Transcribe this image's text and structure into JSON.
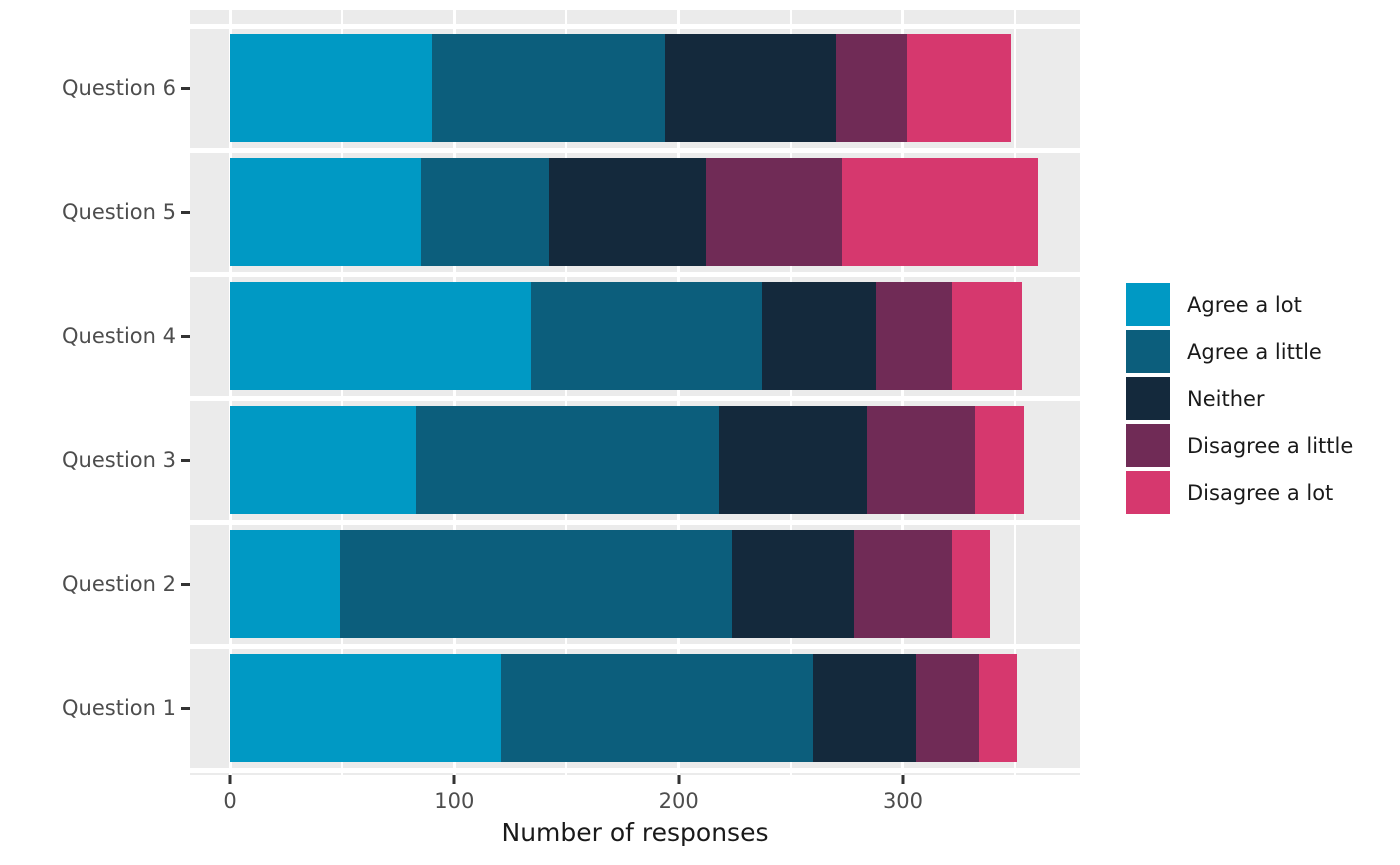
{
  "figure": {
    "background": "#ffffff",
    "panel_bg": "#ebebeb",
    "grid_color": "#ffffff",
    "axis_text_color": "#4d4d4d",
    "axis_title_color": "#1a1a1a",
    "tick_mark_color": "#333333"
  },
  "chart_data": {
    "type": "bar",
    "orientation": "horizontal",
    "stacked": true,
    "title": "",
    "xlabel": "Number of responses",
    "ylabel": "",
    "categories": [
      "Question 6",
      "Question 5",
      "Question 4",
      "Question 3",
      "Question 2",
      "Question 1"
    ],
    "series": [
      {
        "name": "Agree a lot",
        "color": "#0099c4",
        "values": [
          90,
          85,
          134,
          83,
          49,
          121
        ]
      },
      {
        "name": "Agree a little",
        "color": "#0c5e7c",
        "values": [
          104,
          57,
          103,
          135,
          175,
          139
        ]
      },
      {
        "name": "Neither",
        "color": "#14293c",
        "values": [
          76,
          70,
          51,
          66,
          54,
          46
        ]
      },
      {
        "name": "Disagree a little",
        "color": "#702b56",
        "values": [
          32,
          61,
          34,
          48,
          44,
          28
        ]
      },
      {
        "name": "Disagree a lot",
        "color": "#d6386e",
        "values": [
          46,
          87,
          31,
          22,
          17,
          17
        ]
      }
    ],
    "totals": [
      348,
      360,
      353,
      354,
      339,
      351
    ],
    "xlim": [
      -19,
      379
    ],
    "x_ticks": [
      0,
      100,
      200,
      300
    ],
    "x_minor_ticks": [
      50,
      150,
      250,
      350
    ],
    "grid": true,
    "legend_position": "right"
  }
}
